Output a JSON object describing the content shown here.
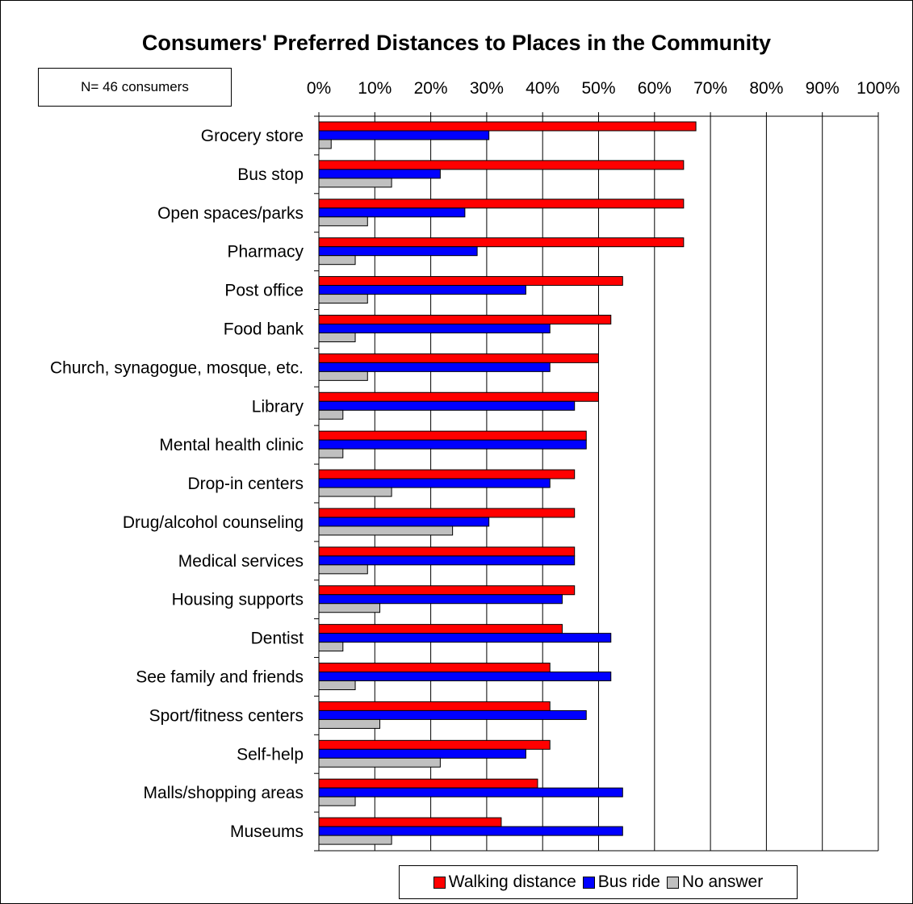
{
  "colors": {
    "walking": "#ff0000",
    "bus": "#0000ff",
    "none": "#c0c0c0"
  },
  "chart_data": {
    "type": "bar",
    "orientation": "horizontal",
    "title": "Consumers' Preferred Distances to Places in the Community",
    "annotation": "N= 46 consumers",
    "xlim": [
      0,
      100
    ],
    "xticks": [
      "0%",
      "10%",
      "20%",
      "30%",
      "40%",
      "50%",
      "60%",
      "70%",
      "80%",
      "90%",
      "100%"
    ],
    "grid": true,
    "legend_position": "bottom",
    "categories": [
      "Grocery store",
      "Bus stop",
      "Open spaces/parks",
      "Pharmacy",
      "Post office",
      "Food bank",
      "Church, synagogue, mosque, etc.",
      "Library",
      "Mental health clinic",
      "Drop-in centers",
      "Drug/alcohol counseling",
      "Medical services",
      "Housing supports",
      "Dentist",
      "See family and friends",
      "Sport/fitness centers",
      "Self-help",
      "Malls/shopping areas",
      "Museums"
    ],
    "series": [
      {
        "name": "Walking distance",
        "values": [
          67.4,
          65.2,
          65.2,
          65.2,
          54.3,
          52.2,
          50.0,
          50.0,
          47.8,
          45.7,
          45.7,
          45.7,
          45.7,
          43.5,
          41.3,
          41.3,
          41.3,
          39.1,
          32.6
        ]
      },
      {
        "name": "Bus ride",
        "values": [
          30.4,
          21.7,
          26.1,
          28.3,
          37.0,
          41.3,
          41.3,
          45.7,
          47.8,
          41.3,
          30.4,
          45.7,
          43.5,
          52.2,
          52.2,
          47.8,
          37.0,
          54.3,
          54.3
        ]
      },
      {
        "name": "No answer",
        "values": [
          2.2,
          13.0,
          8.7,
          6.5,
          8.7,
          6.5,
          8.7,
          4.3,
          4.3,
          13.0,
          23.9,
          8.7,
          10.9,
          4.3,
          6.5,
          10.9,
          21.7,
          6.5,
          13.0
        ]
      }
    ]
  }
}
